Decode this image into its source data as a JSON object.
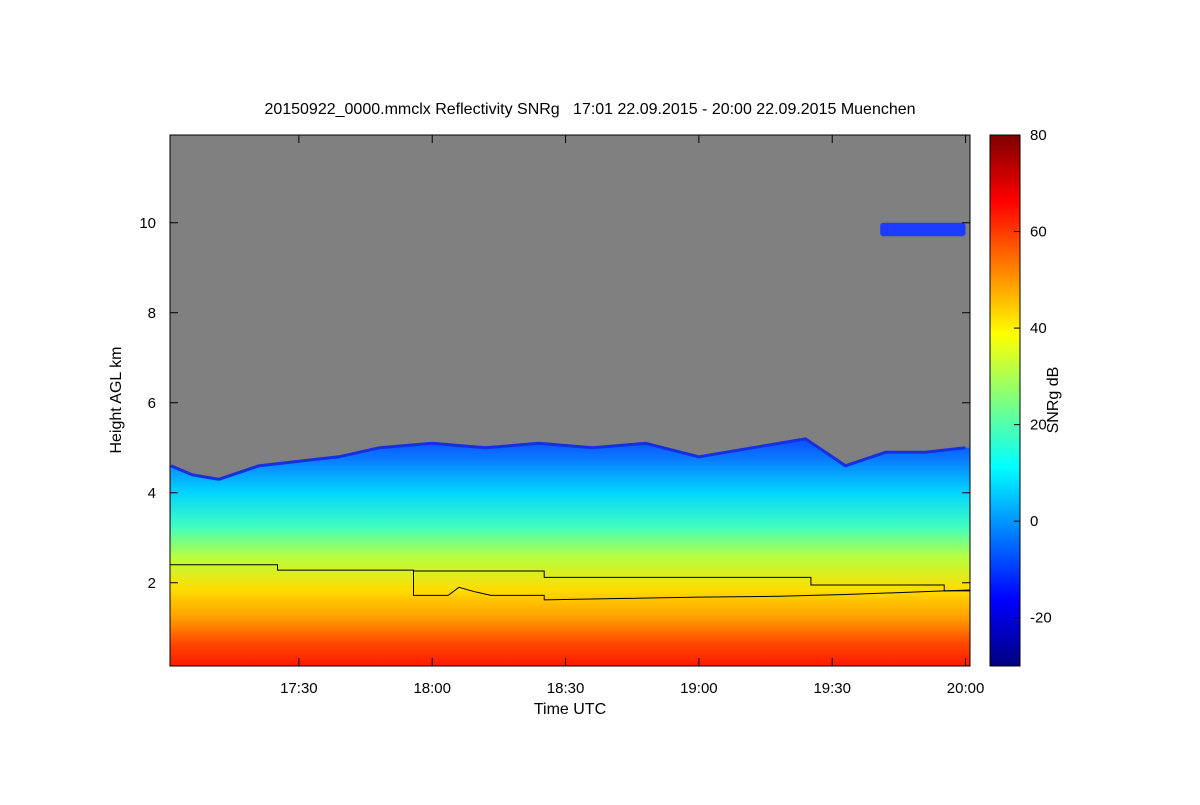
{
  "chart_data": {
    "type": "heatmap",
    "title": "20150922_0000.mmclx Reflectivity SNRg   17:01 22.09.2015 - 20:00 22.09.2015 Muenchen",
    "xlabel": "Time UTC",
    "ylabel": "Height AGL km",
    "x_ticks": [
      {
        "value": 17.5,
        "label": "17:30"
      },
      {
        "value": 18.0,
        "label": "18:00"
      },
      {
        "value": 18.5,
        "label": "18:30"
      },
      {
        "value": 19.0,
        "label": "19:00"
      },
      {
        "value": 19.5,
        "label": "19:30"
      },
      {
        "value": 20.0,
        "label": "20:00"
      }
    ],
    "y_ticks": [
      {
        "value": 2,
        "label": "2"
      },
      {
        "value": 4,
        "label": "4"
      },
      {
        "value": 6,
        "label": "6"
      },
      {
        "value": 8,
        "label": "8"
      },
      {
        "value": 10,
        "label": "10"
      }
    ],
    "xlim": [
      17.0167,
      20.0167
    ],
    "ylim": [
      0.15,
      11.95
    ],
    "background_color": "#808080",
    "colorbar": {
      "label": "SNRg dB",
      "range": [
        -30,
        80
      ],
      "ticks": [
        {
          "value": -20,
          "label": "-20"
        },
        {
          "value": 0,
          "label": "0"
        },
        {
          "value": 20,
          "label": "20"
        },
        {
          "value": 40,
          "label": "40"
        },
        {
          "value": 60,
          "label": "60"
        },
        {
          "value": 80,
          "label": "80"
        }
      ],
      "colormap": [
        "#00007f",
        "#0000ff",
        "#007fff",
        "#00ffff",
        "#7fff7f",
        "#ffff00",
        "#ff7f00",
        "#ff0000",
        "#7f0000"
      ]
    },
    "echo_top_height": [
      {
        "t": 17.02,
        "h": 4.6
      },
      {
        "t": 17.1,
        "h": 4.4
      },
      {
        "t": 17.2,
        "h": 4.3
      },
      {
        "t": 17.35,
        "h": 4.6
      },
      {
        "t": 17.5,
        "h": 4.7
      },
      {
        "t": 17.65,
        "h": 4.8
      },
      {
        "t": 17.8,
        "h": 5.0
      },
      {
        "t": 18.0,
        "h": 5.1
      },
      {
        "t": 18.2,
        "h": 5.0
      },
      {
        "t": 18.4,
        "h": 5.1
      },
      {
        "t": 18.6,
        "h": 5.0
      },
      {
        "t": 18.8,
        "h": 5.1
      },
      {
        "t": 19.0,
        "h": 4.8
      },
      {
        "t": 19.2,
        "h": 5.0
      },
      {
        "t": 19.4,
        "h": 5.2
      },
      {
        "t": 19.55,
        "h": 4.6
      },
      {
        "t": 19.7,
        "h": 4.9
      },
      {
        "t": 19.85,
        "h": 4.9
      },
      {
        "t": 20.0,
        "h": 5.0
      }
    ],
    "upper_echo": {
      "t_start": 19.68,
      "t_end": 20.0,
      "h_low": 9.7,
      "h_high": 10.0
    },
    "lines": [
      {
        "points": [
          [
            17.017,
            2.4
          ],
          [
            17.42,
            2.4
          ],
          [
            17.42,
            2.28
          ],
          [
            17.93,
            2.28
          ],
          [
            17.93,
            2.26
          ],
          [
            18.42,
            2.26
          ],
          [
            18.42,
            2.12
          ],
          [
            19.42,
            2.12
          ],
          [
            19.42,
            1.95
          ],
          [
            19.92,
            1.95
          ],
          [
            19.92,
            1.82
          ],
          [
            20.017,
            1.82
          ]
        ]
      },
      {
        "points": [
          [
            17.93,
            2.25
          ],
          [
            17.93,
            1.72
          ],
          [
            18.06,
            1.72
          ],
          [
            18.1,
            1.9
          ],
          [
            18.16,
            1.8
          ],
          [
            18.22,
            1.72
          ],
          [
            18.42,
            1.72
          ],
          [
            18.42,
            1.62
          ],
          [
            18.7,
            1.65
          ],
          [
            19.0,
            1.68
          ],
          [
            19.3,
            1.7
          ],
          [
            19.55,
            1.74
          ],
          [
            19.75,
            1.78
          ],
          [
            19.92,
            1.82
          ],
          [
            20.017,
            1.84
          ]
        ]
      }
    ]
  }
}
